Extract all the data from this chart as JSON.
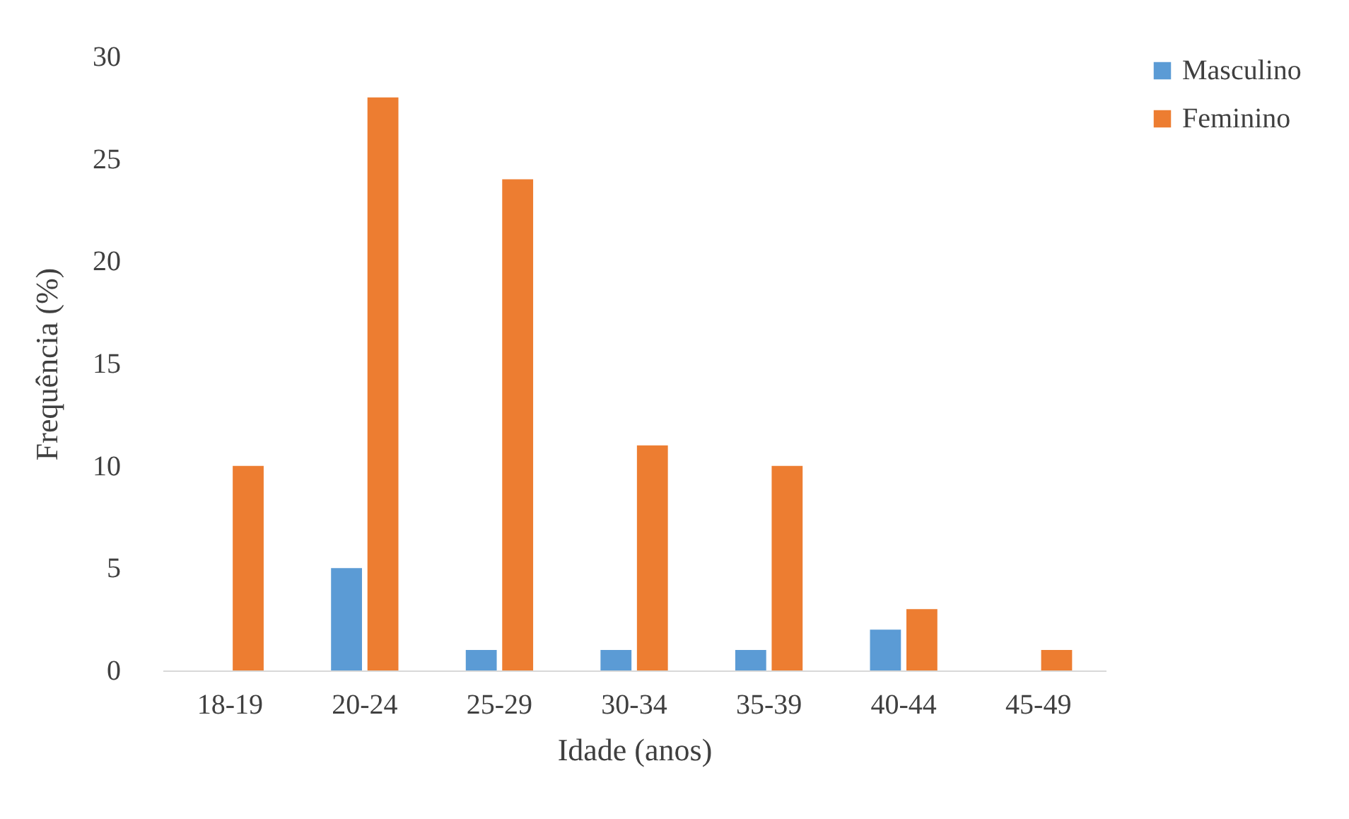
{
  "chart_data": {
    "type": "bar",
    "xlabel": "Idade (anos)",
    "ylabel": "Frequência (%)",
    "categories": [
      "18-19",
      "20-24",
      "25-29",
      "30-34",
      "35-39",
      "40-44",
      "45-49"
    ],
    "series": [
      {
        "name": "Masculino",
        "color": "#5b9bd5",
        "values": [
          0,
          5,
          1,
          1,
          1,
          2,
          0
        ]
      },
      {
        "name": "Feminino",
        "color": "#ed7d31",
        "values": [
          10,
          28,
          24,
          11,
          10,
          3,
          1
        ]
      }
    ],
    "ylim": [
      0,
      30
    ],
    "yticks": [
      0,
      5,
      10,
      15,
      20,
      25,
      30
    ],
    "legend": "right"
  }
}
